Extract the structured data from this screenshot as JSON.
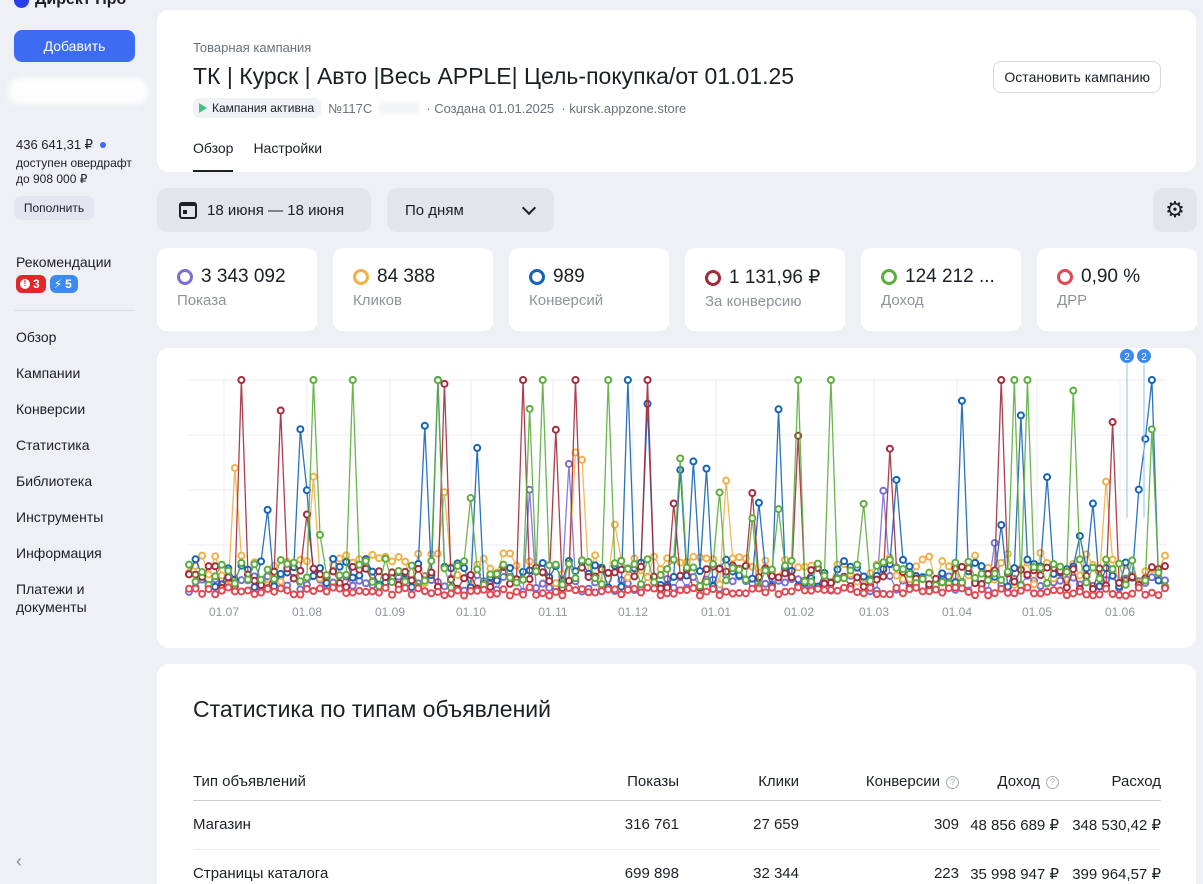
{
  "sidebar": {
    "brand": "Директ Про",
    "add_button": "Добавить",
    "balance": "436 641,31 ₽",
    "overdraft": "доступен овердрафт до 908 000 ₽",
    "topup_button": "Пополнить",
    "recommendations_title": "Рекомендации",
    "badge_red": "3",
    "badge_blue": "5",
    "nav": [
      "Обзор",
      "Кампании",
      "Конверсии",
      "Статистика",
      "Библиотека",
      "Инструменты",
      "Информация",
      "Платежи и документы"
    ],
    "collapse_icon": "‹"
  },
  "header": {
    "campaign_type": "Товарная кампания",
    "title": "ТК | Курск | Авто |Весь APPLE| Цель-покупка/от 01.01.25",
    "status": "Кампания активна",
    "number": "№117С",
    "created": "· Создана 01.01.2025",
    "site": "· kursk.appzone.store",
    "stop_button": "Остановить кампанию",
    "tabs": [
      "Обзор",
      "Настройки"
    ]
  },
  "filters": {
    "date_range": "18 июня — 18 июня",
    "grouping": "По дням"
  },
  "metrics": [
    {
      "value": "3 343 092",
      "label": "Показа",
      "color": "#7b6fd6"
    },
    {
      "value": "84 388",
      "label": "Кликов",
      "color": "#f2b049"
    },
    {
      "value": "989",
      "label": "Конверсий",
      "color": "#1463b8"
    },
    {
      "value": "1 131,96 ₽",
      "label": "За конверсию",
      "color": "#a52a3a"
    },
    {
      "value": "124 212 ...",
      "label": "Доход",
      "color": "#5cae3e"
    },
    {
      "value": "0,90 %",
      "label": "ДРР",
      "color": "#e04a52"
    }
  ],
  "chart_data": {
    "type": "line",
    "x_tick_labels": [
      "01.07",
      "01.08",
      "01.09",
      "01.10",
      "01.11",
      "01.12",
      "01.01",
      "01.02",
      "01.03",
      "01.04",
      "01.05",
      "01.06"
    ],
    "markers": [
      "2",
      "2"
    ],
    "grid": true,
    "series_colors": [
      "#7b6fd6",
      "#f2b049",
      "#1463b8",
      "#a52a3a",
      "#5cae3e",
      "#e04a52"
    ]
  },
  "stats": {
    "title": "Статистика по типам объявлений",
    "columns": [
      "Тип объявлений",
      "Показы",
      "Клики",
      "Конверсии",
      "Доход",
      "Расход"
    ],
    "rows": [
      [
        "Магазин",
        "316 761",
        "27 659",
        "309",
        "48 856 689 ₽",
        "348 530,42 ₽"
      ],
      [
        "Страницы каталога",
        "699 898",
        "32 344",
        "223",
        "35 998 947 ₽",
        "399 964,57 ₽"
      ]
    ]
  }
}
